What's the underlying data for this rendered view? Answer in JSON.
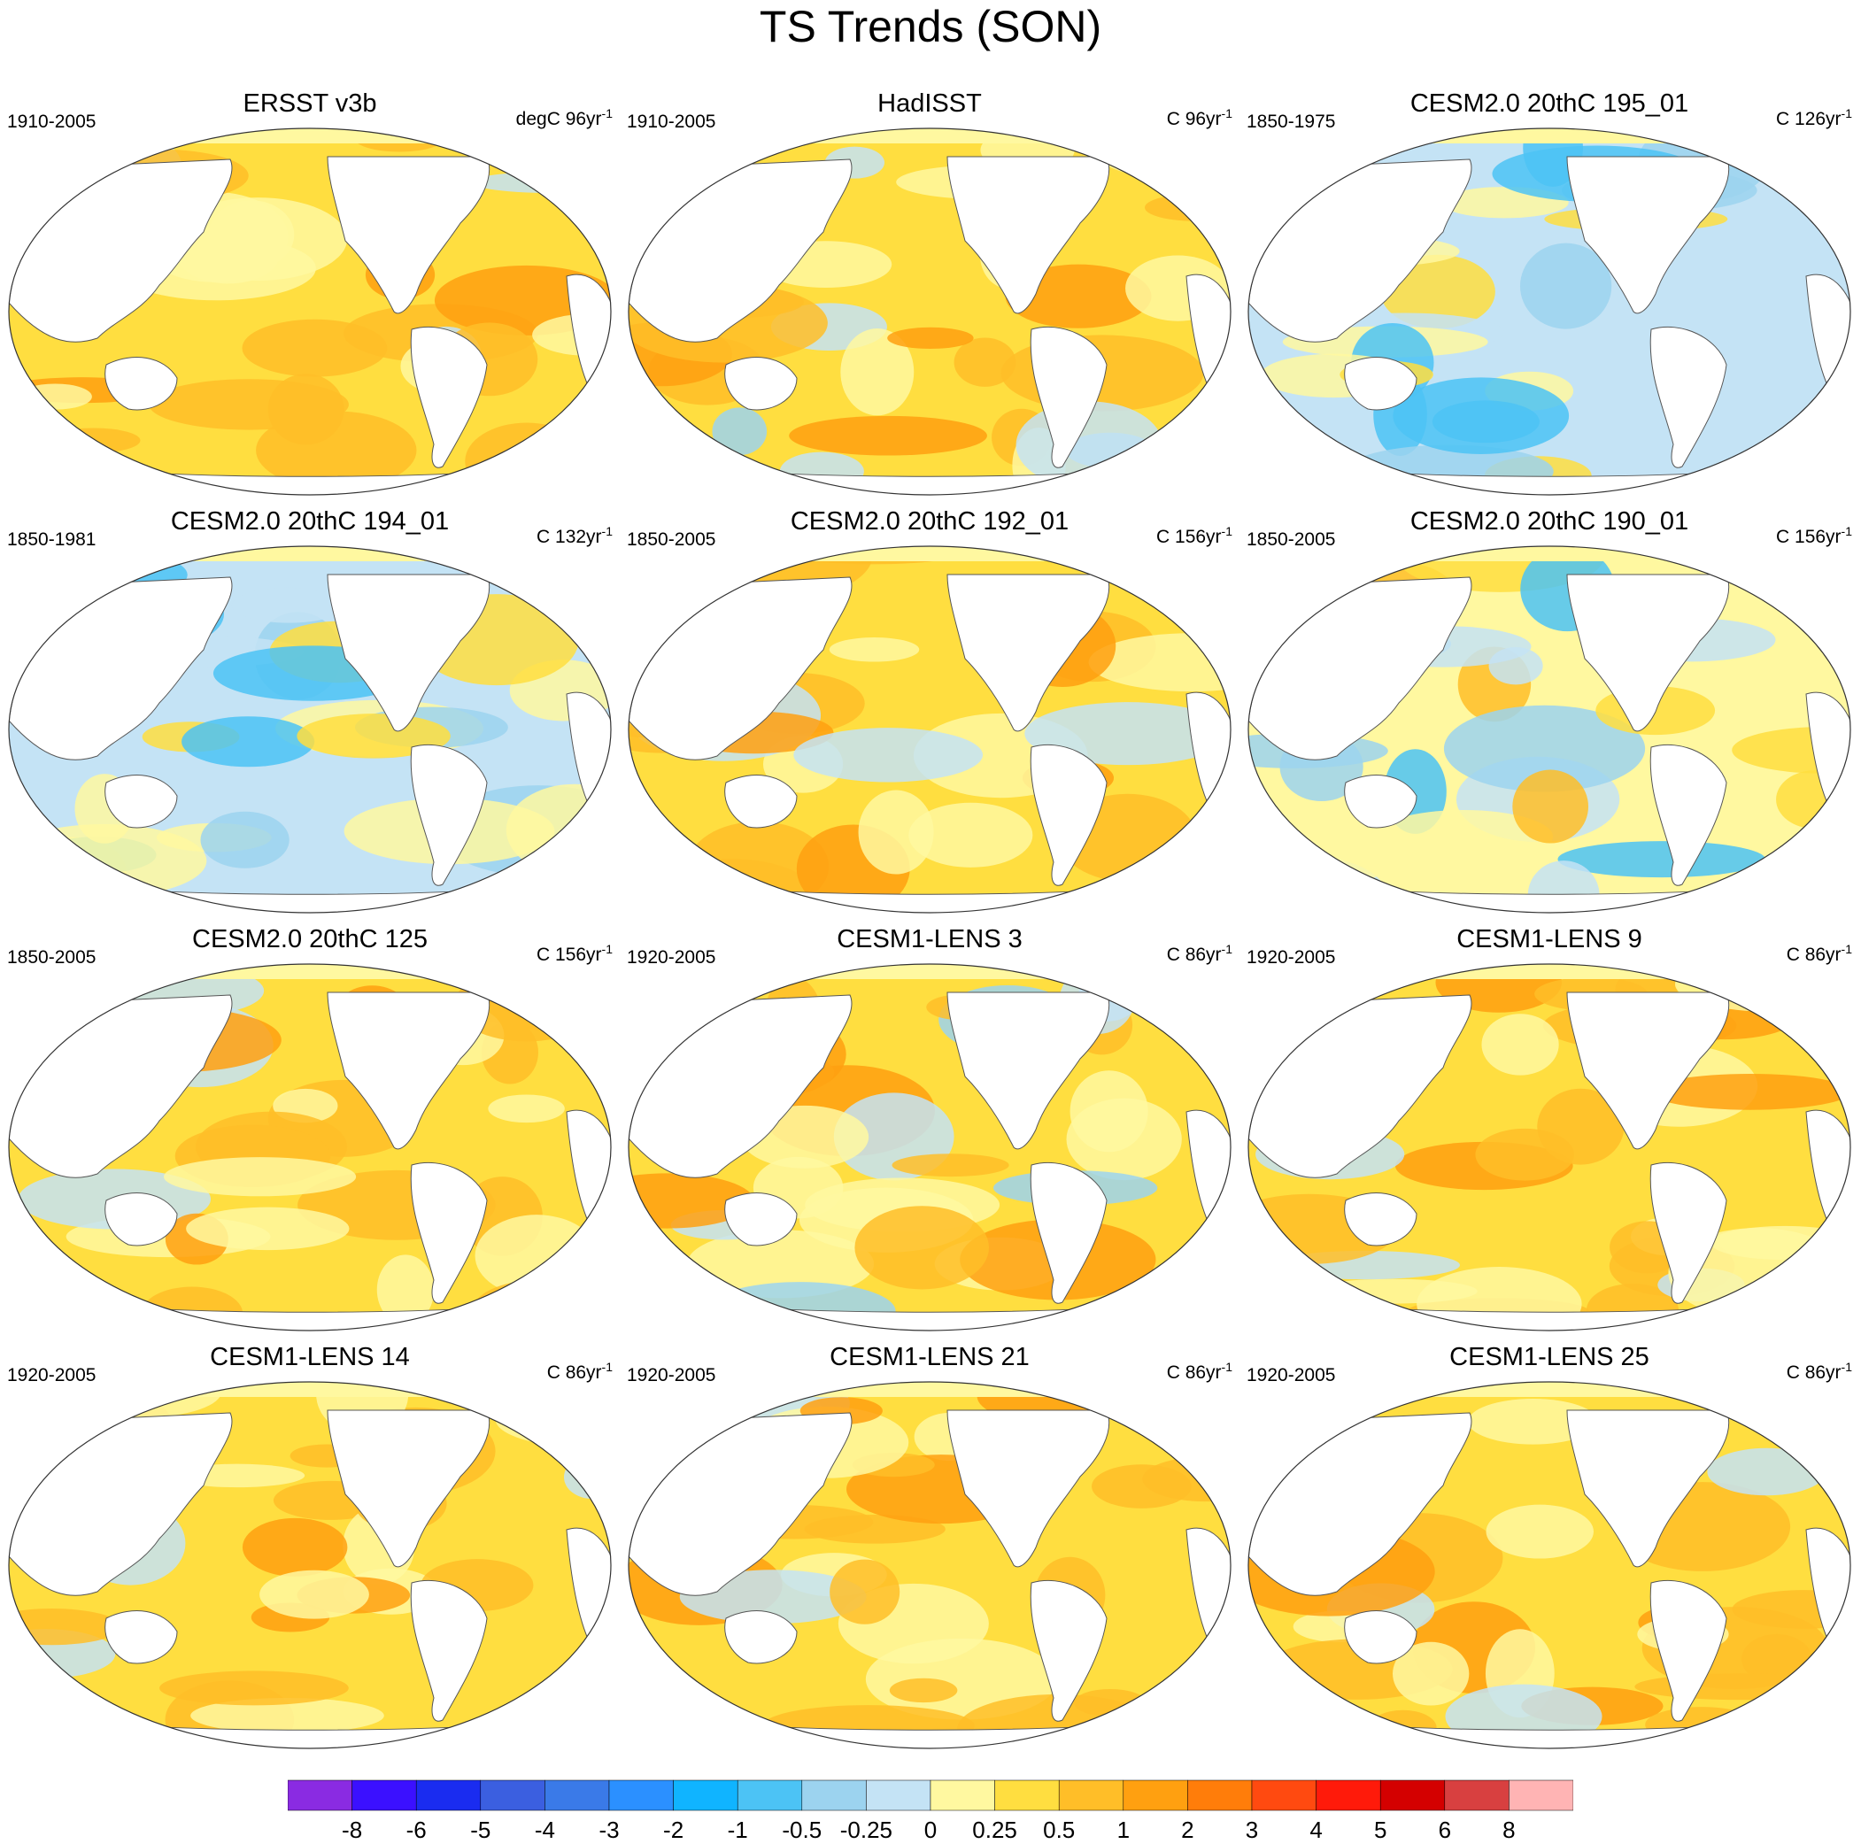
{
  "title": "TS Trends (SON)",
  "panels": [
    {
      "title": "ERSST v3b",
      "period": "1910-2005",
      "units": "degC 96yr",
      "units_sup": "-1",
      "pattern": "warm"
    },
    {
      "title": "HadISST",
      "period": "1910-2005",
      "units": "C 96yr",
      "units_sup": "-1",
      "pattern": "mixed-warm"
    },
    {
      "title": "CESM2.0 20thC 195_01",
      "period": "1850-1975",
      "units": "C 126yr",
      "units_sup": "-1",
      "pattern": "cool"
    },
    {
      "title": "CESM2.0 20thC 194_01",
      "period": "1850-1981",
      "units": "C 132yr",
      "units_sup": "-1",
      "pattern": "cool"
    },
    {
      "title": "CESM2.0 20thC 192_01",
      "period": "1850-2005",
      "units": "C 156yr",
      "units_sup": "-1",
      "pattern": "warm"
    },
    {
      "title": "CESM2.0 20thC 190_01",
      "period": "1850-2005",
      "units": "C 156yr",
      "units_sup": "-1",
      "pattern": "cool-mixed"
    },
    {
      "title": "CESM2.0 20thC 125",
      "period": "1850-2005",
      "units": "C 156yr",
      "units_sup": "-1",
      "pattern": "warm"
    },
    {
      "title": "CESM1-LENS 3",
      "period": "1920-2005",
      "units": "C 86yr",
      "units_sup": "-1",
      "pattern": "mixed-warm"
    },
    {
      "title": "CESM1-LENS 9",
      "period": "1920-2005",
      "units": "C 86yr",
      "units_sup": "-1",
      "pattern": "warm"
    },
    {
      "title": "CESM1-LENS 14",
      "period": "1920-2005",
      "units": "C 86yr",
      "units_sup": "-1",
      "pattern": "warm"
    },
    {
      "title": "CESM1-LENS 21",
      "period": "1920-2005",
      "units": "C 86yr",
      "units_sup": "-1",
      "pattern": "warm"
    },
    {
      "title": "CESM1-LENS 25",
      "period": "1920-2005",
      "units": "C 86yr",
      "units_sup": "-1",
      "pattern": "warm"
    }
  ],
  "colorbar": {
    "colors": [
      "#8a2be2",
      "#3b10ff",
      "#1a2cf0",
      "#3b5fe0",
      "#3a7ae8",
      "#2b90ff",
      "#10b4ff",
      "#4cc3f5",
      "#9cd3ef",
      "#c4e3f5",
      "#fff8a0",
      "#ffde40",
      "#ffbe28",
      "#ffa010",
      "#ff7d0a",
      "#ff4a10",
      "#ff1a0a",
      "#d40000",
      "#d84040",
      "#ffb4b4"
    ],
    "labels": [
      "-8",
      "-6",
      "-5",
      "-4",
      "-3",
      "-2",
      "-1",
      "-0.5",
      "-0.25",
      "0",
      "0.25",
      "0.5",
      "1",
      "2",
      "3",
      "4",
      "5",
      "6",
      "8"
    ]
  }
}
